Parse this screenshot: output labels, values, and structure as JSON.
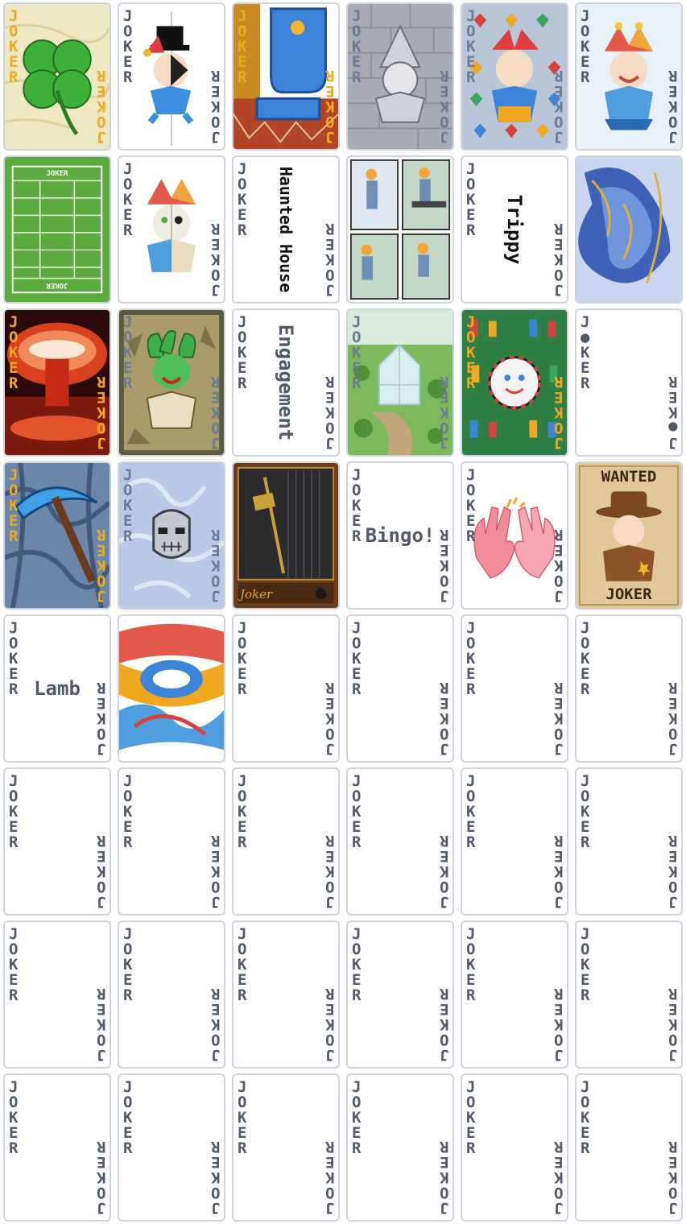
{
  "deck": {
    "corner_label": "JOKER",
    "colors": {
      "card_border": "#cdd4dd",
      "corner_text": "#4f5b6b",
      "page_bg": "#ffffff"
    }
  },
  "cards": [
    {
      "id": "four-leaf-clover",
      "art": "clover-green"
    },
    {
      "id": "half-jester-tophat",
      "art": "jester-tophat"
    },
    {
      "id": "blue-boot",
      "art": "boot-blue"
    },
    {
      "id": "gray-stone-jester",
      "art": "stone-gray"
    },
    {
      "id": "suits-pattern-jester",
      "art": "suits-pattern"
    },
    {
      "id": "classic-jester",
      "art": "jester-classic"
    },
    {
      "id": "football-field",
      "art": "field-green",
      "field_label": "JOKER"
    },
    {
      "id": "skull-jester",
      "art": "jester-skull"
    },
    {
      "id": "haunted-house",
      "title": "Haunted House"
    },
    {
      "id": "comic-panels",
      "art": "comic-panels"
    },
    {
      "id": "trippy",
      "title": "Trippy"
    },
    {
      "id": "blue-swirl",
      "art": "blue-swirl"
    },
    {
      "id": "mushroom-cloud",
      "art": "explosion-red"
    },
    {
      "id": "medusa-jester",
      "art": "medusa-parchment"
    },
    {
      "id": "engagement",
      "title": "Engagement"
    },
    {
      "id": "glass-house",
      "art": "greenhouse-garden"
    },
    {
      "id": "stained-glass",
      "art": "stained-glass"
    },
    {
      "id": "dot-joker",
      "corner_label_alt": "J●KER"
    },
    {
      "id": "pickaxe",
      "art": "pickaxe-storm"
    },
    {
      "id": "iron-mask",
      "art": "mask-blue"
    },
    {
      "id": "pendulum-clock",
      "art": "clock-dark",
      "signature": "Joker"
    },
    {
      "id": "bingo",
      "title": "Bingo!"
    },
    {
      "id": "high-five",
      "art": "high-five"
    },
    {
      "id": "wanted-poster",
      "art": "wanted-sheriff",
      "poster_top": "WANTED",
      "poster_bottom": "JOKER"
    },
    {
      "id": "lamb",
      "title": "Lamb"
    },
    {
      "id": "abstract-blue-orange",
      "art": "abstract-swirl"
    },
    {
      "id": "blank-27"
    },
    {
      "id": "blank-28"
    },
    {
      "id": "blank-29"
    },
    {
      "id": "blank-30"
    },
    {
      "id": "blank-31"
    },
    {
      "id": "blank-32"
    },
    {
      "id": "blank-33"
    },
    {
      "id": "blank-34"
    },
    {
      "id": "blank-35"
    },
    {
      "id": "blank-36"
    },
    {
      "id": "blank-37"
    },
    {
      "id": "blank-38"
    },
    {
      "id": "blank-39"
    },
    {
      "id": "blank-40"
    },
    {
      "id": "blank-41"
    },
    {
      "id": "blank-42"
    },
    {
      "id": "blank-43"
    },
    {
      "id": "blank-44"
    },
    {
      "id": "blank-45"
    },
    {
      "id": "blank-46"
    },
    {
      "id": "blank-47"
    },
    {
      "id": "blank-48"
    }
  ]
}
